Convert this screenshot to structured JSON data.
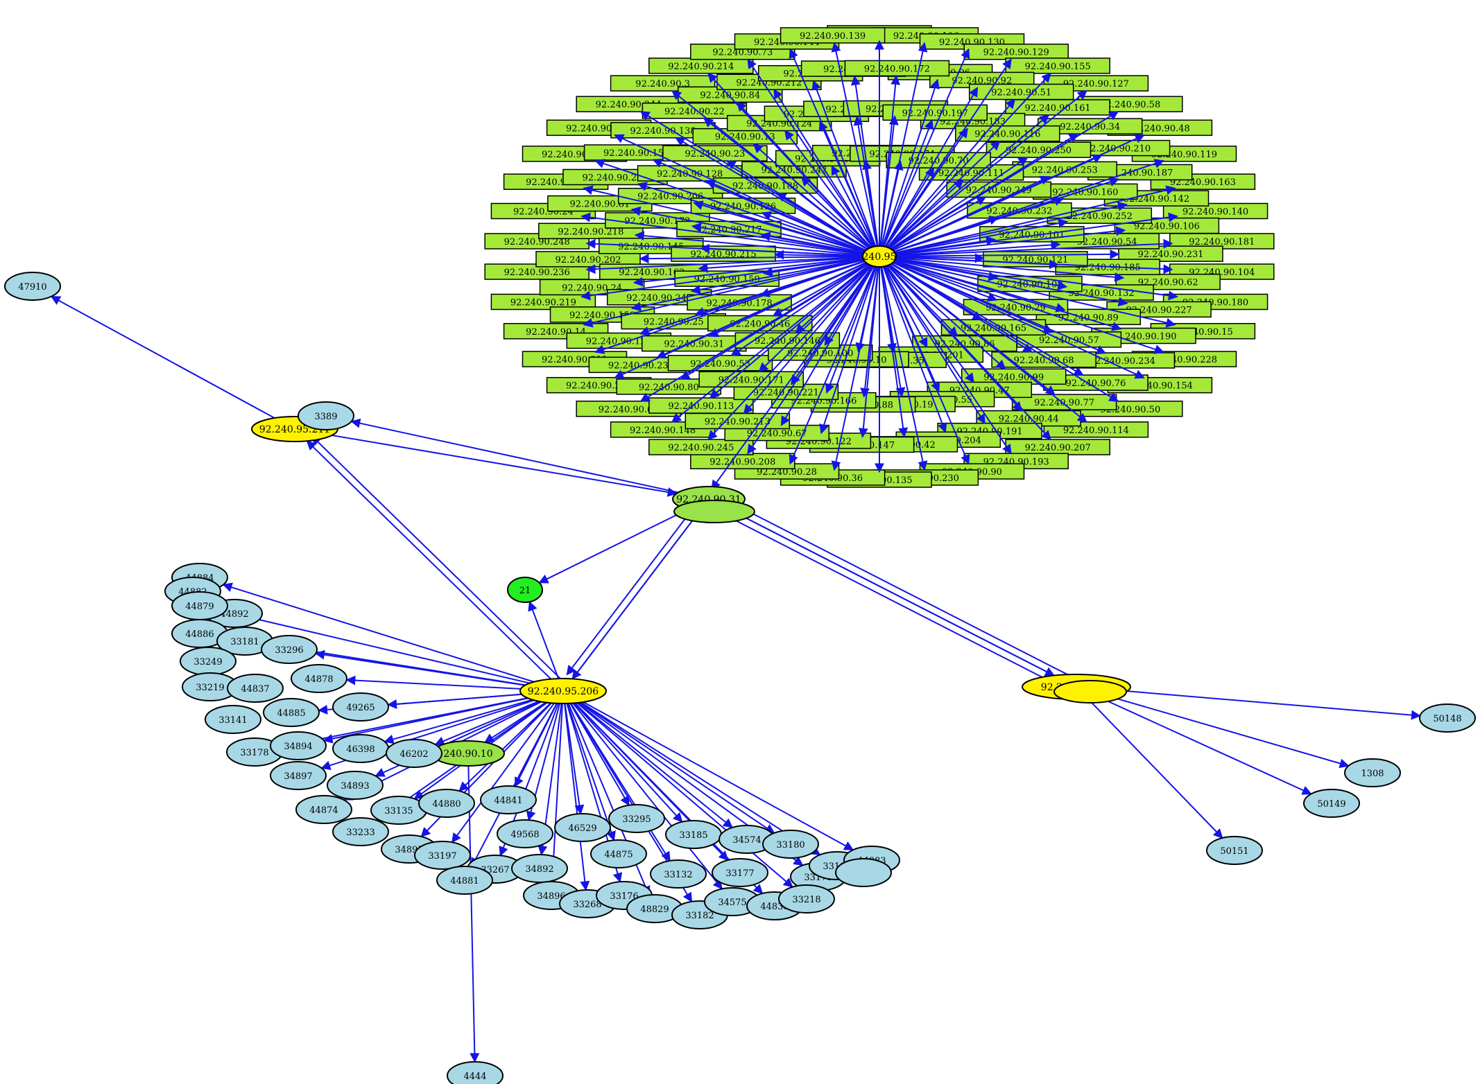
{
  "colors": {
    "edge": "#1414e6",
    "rect_fill": "#a4e93a",
    "host_fill": "#fff200",
    "router_fill": "#98e24a",
    "port_fill": "#a8d8e6",
    "service_fill": "#22ee22",
    "outline": "#000000"
  },
  "hub": {
    "label": "240.95",
    "rect_labels": [
      "92.240.90.27",
      "92.240.90.106",
      "92.240.90.130",
      "92.240.90.129",
      "92.240.90.155",
      "92.240.90.127",
      "92.240.90.58",
      "92.240.90.48",
      "92.240.90.119",
      "92.240.90.163",
      "92.240.90.140",
      "92.240.90.181",
      "92.240.90.104",
      "92.240.90.180",
      "92.240.90.15",
      "92.240.90.228",
      "92.240.90.154",
      "92.240.90.50",
      "92.240.90.114",
      "92.240.90.207",
      "92.240.90.193",
      "92.240.90.90",
      "92.240.90.230",
      "92.240.90.135",
      "92.240.90.36",
      "92.240.90.28",
      "92.240.90.208",
      "92.240.90.245",
      "92.240.90.148",
      "92.240.90.69",
      "92.240.90.238",
      "92.240.90.211",
      "92.240.90.14",
      "92.240.90.219",
      "92.240.90.236",
      "92.240.90.248",
      "92.240.90.24",
      "92.240.90.65",
      "92.240.90.153",
      "92.240.90.110",
      "92.240.90.244",
      "92.240.90.3",
      "92.240.90.214",
      "92.240.90.73",
      "92.240.90.144",
      "92.240.90.139",
      "92.240.90.96",
      "92.240.90.92",
      "92.240.90.51",
      "92.240.90.161",
      "92.240.90.34",
      "92.240.90.210",
      "92.240.90.187",
      "92.240.90.142",
      "92.240.90.106",
      "92.240.90.231",
      "92.240.90.62",
      "92.240.90.227",
      "92.240.90.190",
      "92.240.90.234",
      "92.240.90.76",
      "92.240.90.77",
      "92.240.90.44",
      "92.240.90.191",
      "92.240.90.204",
      "92.240.90.42",
      "92.240.90.147",
      "92.240.90.122",
      "92.240.90.67",
      "92.240.90.213",
      "92.240.90.113",
      "92.240.90.80",
      "92.240.90.237",
      "92.240.90.123",
      "92.240.90.158",
      "92.240.90.24",
      "92.240.90.202",
      "92.240.90.218",
      "92.240.90.81",
      "92.240.90.209",
      "92.240.90.157",
      "92.240.90.138",
      "92.240.90.22",
      "92.240.90.84",
      "92.240.90.212",
      "92.240.90.9",
      "92.240.90.78",
      "92.240.90.172",
      "92.240.90.183",
      "92.240.90.116",
      "92.240.90.250",
      "92.240.90.253",
      "92.240.90.160",
      "92.240.90.252",
      "92.240.90.54",
      "92.240.90.185",
      "92.240.90.132",
      "92.240.90.89",
      "92.240.90.57",
      "92.240.90.68",
      "92.240.90.99",
      "92.240.90.47",
      "92.240.90.55",
      "92.240.90.19",
      "92.240.90.88",
      "92.240.90.166",
      "92.240.90.221",
      "92.240.90.171",
      "92.240.90.53",
      "92.240.90.31",
      "92.240.90.25",
      "92.240.90.247",
      "92.240.90.162",
      "92.240.90.145",
      "92.240.90.173",
      "92.240.90.206",
      "92.240.90.128",
      "92.240.90.23",
      "92.240.90.13",
      "92.240.90.124",
      "92.240.90.257",
      "92.240.90.59",
      "92.240.90.17",
      "92.240.90.197",
      "92.240.90.111",
      "92.240.90.249",
      "92.240.90.232",
      "92.240.90.101",
      "92.240.90.121",
      "92.240.90.108",
      "92.240.90.29",
      "92.240.90.165",
      "92.240.90.86",
      "92.240.90.201",
      "92.240.90.35",
      "92.240.90.10",
      "92.240.90.100",
      "92.240.90.146",
      "92.240.90.46",
      "92.240.90.178",
      "92.240.90.159",
      "92.240.90.215",
      "92.240.90.217",
      "92.240.90.126",
      "92.240.90.188",
      "92.240.90.242",
      "92.240.90.136",
      "92.240.90.223",
      "92.240.90.174",
      "92.240.90.70"
    ]
  },
  "nodes": [
    {
      "id": "47910",
      "label": "47910",
      "kind": "port"
    },
    {
      "id": "h211",
      "label": "92.240.95.211",
      "kind": "host"
    },
    {
      "id": "3389",
      "label": "3389",
      "kind": "port"
    },
    {
      "id": "r31",
      "label": "92.240.90.31",
      "kind": "router"
    },
    {
      "id": "r31b",
      "label": "",
      "kind": "router"
    },
    {
      "id": "s21",
      "label": "21",
      "kind": "service"
    },
    {
      "id": "h206",
      "label": "92.240.95.206",
      "kind": "host"
    },
    {
      "id": "h207",
      "label": "92.240.95.207",
      "kind": "host"
    },
    {
      "id": "h207b",
      "label": "",
      "kind": "host"
    },
    {
      "id": "50148",
      "label": "50148",
      "kind": "port"
    },
    {
      "id": "1308",
      "label": "1308",
      "kind": "port"
    },
    {
      "id": "50149",
      "label": "50149",
      "kind": "port"
    },
    {
      "id": "50151",
      "label": "50151",
      "kind": "port"
    },
    {
      "id": "r10",
      "label": "240.90.10",
      "kind": "router"
    },
    {
      "id": "4444",
      "label": "4444",
      "kind": "port"
    },
    {
      "id": "44884",
      "label": "44884",
      "kind": "port"
    },
    {
      "id": "44882",
      "label": "44882",
      "kind": "port"
    },
    {
      "id": "44892",
      "label": "44892",
      "kind": "port"
    },
    {
      "id": "44879",
      "label": "44879",
      "kind": "port"
    },
    {
      "id": "44886",
      "label": "44886",
      "kind": "port"
    },
    {
      "id": "33181",
      "label": "33181",
      "kind": "port"
    },
    {
      "id": "33296",
      "label": "33296",
      "kind": "port"
    },
    {
      "id": "33249",
      "label": "33249",
      "kind": "port"
    },
    {
      "id": "44878",
      "label": "44878",
      "kind": "port"
    },
    {
      "id": "33219",
      "label": "33219",
      "kind": "port"
    },
    {
      "id": "44837",
      "label": "44837",
      "kind": "port"
    },
    {
      "id": "49265",
      "label": "49265",
      "kind": "port"
    },
    {
      "id": "33141",
      "label": "33141",
      "kind": "port"
    },
    {
      "id": "44885",
      "label": "44885",
      "kind": "port"
    },
    {
      "id": "33178",
      "label": "33178",
      "kind": "port"
    },
    {
      "id": "34894",
      "label": "34894",
      "kind": "port"
    },
    {
      "id": "46398",
      "label": "46398",
      "kind": "port"
    },
    {
      "id": "46202",
      "label": "46202",
      "kind": "port"
    },
    {
      "id": "34897",
      "label": "34897",
      "kind": "port"
    },
    {
      "id": "34893",
      "label": "34893",
      "kind": "port"
    },
    {
      "id": "44874",
      "label": "44874",
      "kind": "port"
    },
    {
      "id": "33135",
      "label": "33135",
      "kind": "port"
    },
    {
      "id": "44880",
      "label": "44880",
      "kind": "port"
    },
    {
      "id": "44841",
      "label": "44841",
      "kind": "port"
    },
    {
      "id": "33233",
      "label": "33233",
      "kind": "port"
    },
    {
      "id": "49568",
      "label": "49568",
      "kind": "port"
    },
    {
      "id": "46529",
      "label": "46529",
      "kind": "port"
    },
    {
      "id": "33295",
      "label": "33295",
      "kind": "port"
    },
    {
      "id": "33185",
      "label": "33185",
      "kind": "port"
    },
    {
      "id": "34574",
      "label": "34574",
      "kind": "port"
    },
    {
      "id": "33180",
      "label": "33180",
      "kind": "port"
    },
    {
      "id": "34895",
      "label": "34895",
      "kind": "port"
    },
    {
      "id": "33197",
      "label": "33197",
      "kind": "port"
    },
    {
      "id": "44875",
      "label": "44875",
      "kind": "port"
    },
    {
      "id": "33267",
      "label": "33267",
      "kind": "port"
    },
    {
      "id": "34892",
      "label": "34892",
      "kind": "port"
    },
    {
      "id": "33132",
      "label": "33132",
      "kind": "port"
    },
    {
      "id": "33177",
      "label": "33177",
      "kind": "port"
    },
    {
      "id": "33175",
      "label": "33175",
      "kind": "port"
    },
    {
      "id": "33198",
      "label": "33198",
      "kind": "port"
    },
    {
      "id": "44883",
      "label": "44883",
      "kind": "port"
    },
    {
      "id": "44887",
      "label": "",
      "kind": "port"
    },
    {
      "id": "44881",
      "label": "44881",
      "kind": "port"
    },
    {
      "id": "34896",
      "label": "34896",
      "kind": "port"
    },
    {
      "id": "33268",
      "label": "33268",
      "kind": "port"
    },
    {
      "id": "33176",
      "label": "33176",
      "kind": "port"
    },
    {
      "id": "48829",
      "label": "48829",
      "kind": "port"
    },
    {
      "id": "33182",
      "label": "33182",
      "kind": "port"
    },
    {
      "id": "34575",
      "label": "34575",
      "kind": "port"
    },
    {
      "id": "44838",
      "label": "44838",
      "kind": "port"
    },
    {
      "id": "33218",
      "label": "33218",
      "kind": "port"
    }
  ],
  "edges": [
    [
      "h211",
      "47910"
    ],
    [
      "h206",
      "h211"
    ],
    [
      "h206",
      "h211"
    ],
    [
      "r31",
      "3389"
    ],
    [
      "h211",
      "r31"
    ],
    [
      "r31",
      "h206"
    ],
    [
      "r31",
      "h206"
    ],
    [
      "h206",
      "r31"
    ],
    [
      "r31",
      "s21"
    ],
    [
      "h206",
      "s21"
    ],
    [
      "r31",
      "h207"
    ],
    [
      "r31",
      "h207"
    ],
    [
      "h207",
      "r31"
    ],
    [
      "h207",
      "r31"
    ],
    [
      "h207",
      "50148"
    ],
    [
      "h207",
      "1308"
    ],
    [
      "h207",
      "50149"
    ],
    [
      "h207",
      "50151"
    ],
    [
      "r10",
      "4444"
    ],
    [
      "h206",
      "44884"
    ],
    [
      "h206",
      "44879"
    ],
    [
      "h206",
      "44886"
    ],
    [
      "h206",
      "33296"
    ],
    [
      "h206",
      "44878"
    ],
    [
      "h206",
      "49265"
    ],
    [
      "h206",
      "44885"
    ],
    [
      "h206",
      "33178"
    ],
    [
      "h206",
      "34894"
    ],
    [
      "h206",
      "46398"
    ],
    [
      "h206",
      "46202"
    ],
    [
      "h206",
      "34897"
    ],
    [
      "h206",
      "34893"
    ],
    [
      "h206",
      "44874"
    ],
    [
      "h206",
      "33135"
    ],
    [
      "h206",
      "44880"
    ],
    [
      "h206",
      "44841"
    ],
    [
      "h206",
      "33233"
    ],
    [
      "h206",
      "49568"
    ],
    [
      "h206",
      "46529"
    ],
    [
      "h206",
      "33295"
    ],
    [
      "h206",
      "33185"
    ],
    [
      "h206",
      "34574"
    ],
    [
      "h206",
      "33180"
    ],
    [
      "h206",
      "34895"
    ],
    [
      "h206",
      "33197"
    ],
    [
      "h206",
      "44875"
    ],
    [
      "h206",
      "33267"
    ],
    [
      "h206",
      "34892"
    ],
    [
      "h206",
      "33132"
    ],
    [
      "h206",
      "33177"
    ],
    [
      "h206",
      "33175"
    ],
    [
      "h206",
      "33198"
    ],
    [
      "h206",
      "44883"
    ],
    [
      "h206",
      "44881"
    ],
    [
      "h206",
      "34896"
    ],
    [
      "h206",
      "33268"
    ],
    [
      "h206",
      "33176"
    ],
    [
      "h206",
      "48829"
    ],
    [
      "h206",
      "33182"
    ],
    [
      "h206",
      "34575"
    ],
    [
      "h206",
      "44838"
    ],
    [
      "h206",
      "33218"
    ],
    [
      "h206",
      "r10"
    ]
  ]
}
